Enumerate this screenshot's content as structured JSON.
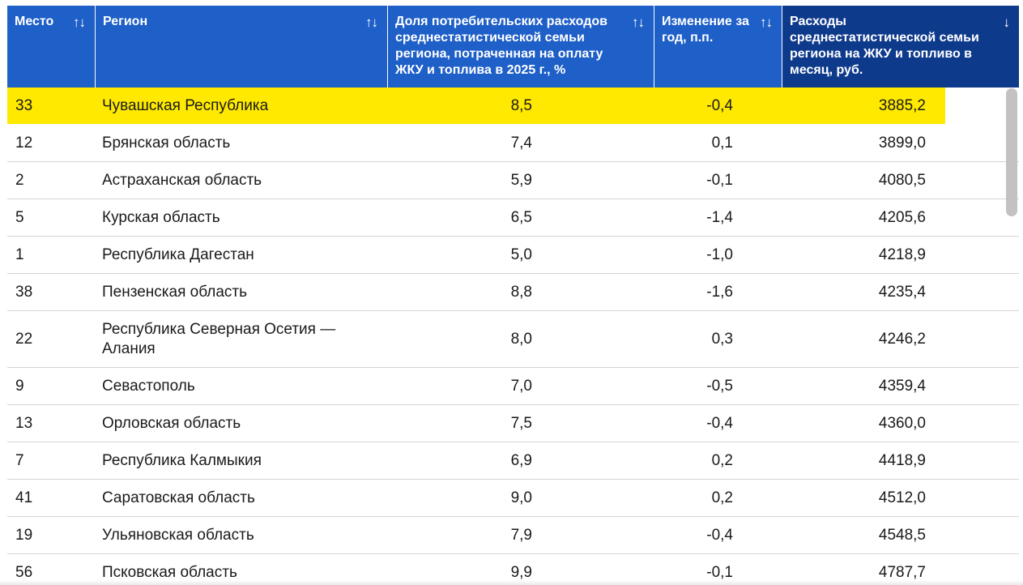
{
  "table": {
    "columns": [
      {
        "label": "Место",
        "sort_icon": "↑↓"
      },
      {
        "label": "Регион",
        "sort_icon": "↑↓"
      },
      {
        "label": "Доля потребительских расходов среднестатистической семьи региона, потраченная на оплату ЖКУ и топлива в 2025 г., %",
        "sort_icon": "↑↓"
      },
      {
        "label": "Изменение за год, п.п.",
        "sort_icon": "↑↓"
      },
      {
        "label": "Расходы среднестатистической семьи региона на ЖКУ и топливо в месяц, руб.",
        "sort_icon": "↓"
      }
    ],
    "rows": [
      {
        "rank": "33",
        "region": "Чувашская Республика",
        "share": "8,5",
        "change": "-0,4",
        "cost": "3885,2",
        "highlighted": true
      },
      {
        "rank": "12",
        "region": "Брянская область",
        "share": "7,4",
        "change": "0,1",
        "cost": "3899,0"
      },
      {
        "rank": "2",
        "region": "Астраханская область",
        "share": "5,9",
        "change": "-0,1",
        "cost": "4080,5"
      },
      {
        "rank": "5",
        "region": "Курская область",
        "share": "6,5",
        "change": "-1,4",
        "cost": "4205,6"
      },
      {
        "rank": "1",
        "region": "Республика Дагестан",
        "share": "5,0",
        "change": "-1,0",
        "cost": "4218,9"
      },
      {
        "rank": "38",
        "region": "Пензенская область",
        "share": "8,8",
        "change": "-1,6",
        "cost": "4235,4"
      },
      {
        "rank": "22",
        "region": "Республика Северная Осетия — Алания",
        "share": "8,0",
        "change": "0,3",
        "cost": "4246,2"
      },
      {
        "rank": "9",
        "region": "Севастополь",
        "share": "7,0",
        "change": "-0,5",
        "cost": "4359,4"
      },
      {
        "rank": "13",
        "region": "Орловская область",
        "share": "7,5",
        "change": "-0,4",
        "cost": "4360,0"
      },
      {
        "rank": "7",
        "region": "Республика Калмыкия",
        "share": "6,9",
        "change": "0,2",
        "cost": "4418,9"
      },
      {
        "rank": "41",
        "region": "Саратовская область",
        "share": "9,0",
        "change": "0,2",
        "cost": "4512,0"
      },
      {
        "rank": "19",
        "region": "Ульяновская область",
        "share": "7,9",
        "change": "-0,4",
        "cost": "4548,5"
      },
      {
        "rank": "56",
        "region": "Псковская область",
        "share": "9,9",
        "change": "-0,1",
        "cost": "4787,7"
      }
    ]
  },
  "colors": {
    "header_bg": "#1e5fc8",
    "sorted_header_bg": "#0e3a8c",
    "highlight": "#ffe900",
    "row_divider": "#d4d4d4"
  }
}
